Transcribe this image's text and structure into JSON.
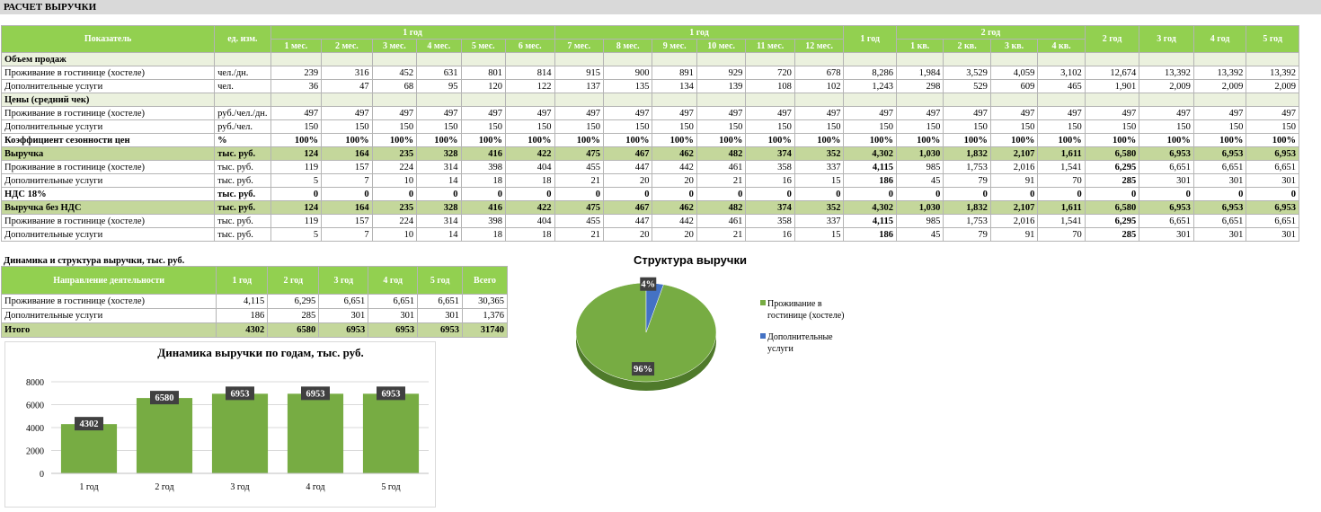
{
  "title": "РАСЧЕТ ВЫРУЧКИ",
  "main": {
    "head_indicator": "Показатель",
    "head_unit": "ед. изм.",
    "head_year1_a": "1 год",
    "head_year1_b": "1 год",
    "head_year1_total": "1 год",
    "head_year2": "2 год",
    "months_a": [
      "1 мес.",
      "2 мес.",
      "3 мес.",
      "4 мес.",
      "5 мес.",
      "6 мес."
    ],
    "months_b": [
      "7 мес.",
      "8 мес.",
      "9 мес.",
      "10 мес.",
      "11 мес.",
      "12 мес."
    ],
    "quarters": [
      "1 кв.",
      "2 кв.",
      "3 кв.",
      "4 кв."
    ],
    "years": [
      "2 год",
      "3 год",
      "4 год",
      "5 год"
    ],
    "rows": [
      {
        "label": "Объем продаж",
        "type": "sec",
        "unit": "",
        "values": [
          "",
          "",
          "",
          "",
          "",
          "",
          "",
          "",
          "",
          "",
          "",
          "",
          "",
          "",
          "",
          "",
          "",
          "",
          "",
          "",
          "",
          ""
        ]
      },
      {
        "label": "Проживание в гостинице (хостеле)",
        "type": "",
        "unit": "чел./дн.",
        "values": [
          "239",
          "316",
          "452",
          "631",
          "801",
          "814",
          "915",
          "900",
          "891",
          "929",
          "720",
          "678",
          "8,286",
          "1,984",
          "3,529",
          "4,059",
          "3,102",
          "12,674",
          "13,392",
          "13,392",
          "13,392"
        ]
      },
      {
        "label": "Дополнительные услуги",
        "type": "",
        "unit": "чел.",
        "values": [
          "36",
          "47",
          "68",
          "95",
          "120",
          "122",
          "137",
          "135",
          "134",
          "139",
          "108",
          "102",
          "1,243",
          "298",
          "529",
          "609",
          "465",
          "1,901",
          "2,009",
          "2,009",
          "2,009"
        ]
      },
      {
        "label": "Цены (средний чек)",
        "type": "sec",
        "unit": "",
        "values": [
          "",
          "",
          "",
          "",
          "",
          "",
          "",
          "",
          "",
          "",
          "",
          "",
          "",
          "",
          "",
          "",
          "",
          "",
          "",
          "",
          ""
        ]
      },
      {
        "label": "Проживание в гостинице (хостеле)",
        "type": "",
        "unit": "руб./чел./дн.",
        "values": [
          "497",
          "497",
          "497",
          "497",
          "497",
          "497",
          "497",
          "497",
          "497",
          "497",
          "497",
          "497",
          "497",
          "497",
          "497",
          "497",
          "497",
          "497",
          "497",
          "497",
          "497"
        ]
      },
      {
        "label": "Дополнительные услуги",
        "type": "",
        "unit": "руб./чел.",
        "values": [
          "150",
          "150",
          "150",
          "150",
          "150",
          "150",
          "150",
          "150",
          "150",
          "150",
          "150",
          "150",
          "150",
          "150",
          "150",
          "150",
          "150",
          "150",
          "150",
          "150",
          "150"
        ]
      },
      {
        "label": "Коэффициент сезонности цен",
        "type": "bold",
        "unit": "%",
        "values": [
          "100%",
          "100%",
          "100%",
          "100%",
          "100%",
          "100%",
          "100%",
          "100%",
          "100%",
          "100%",
          "100%",
          "100%",
          "100%",
          "100%",
          "100%",
          "100%",
          "100%",
          "100%",
          "100%",
          "100%",
          "100%"
        ]
      },
      {
        "label": "Выручка",
        "type": "tot",
        "unit": "тыс. руб.",
        "values": [
          "124",
          "164",
          "235",
          "328",
          "416",
          "422",
          "475",
          "467",
          "462",
          "482",
          "374",
          "352",
          "4,302",
          "1,030",
          "1,832",
          "2,107",
          "1,611",
          "6,580",
          "6,953",
          "6,953",
          "6,953"
        ]
      },
      {
        "label": "Проживание в гостинице (хостеле)",
        "type": "",
        "unit": "тыс. руб.",
        "values": [
          "119",
          "157",
          "224",
          "314",
          "398",
          "404",
          "455",
          "447",
          "442",
          "461",
          "358",
          "337",
          "4,115",
          "985",
          "1,753",
          "2,016",
          "1,541",
          "6,295",
          "6,651",
          "6,651",
          "6,651"
        ]
      },
      {
        "label": "Дополнительные услуги",
        "type": "",
        "unit": "тыс. руб.",
        "values": [
          "5",
          "7",
          "10",
          "14",
          "18",
          "18",
          "21",
          "20",
          "20",
          "21",
          "16",
          "15",
          "186",
          "45",
          "79",
          "91",
          "70",
          "285",
          "301",
          "301",
          "301"
        ]
      },
      {
        "label": "НДС 18%",
        "type": "bold",
        "unit": "тыс. руб.",
        "values": [
          "0",
          "0",
          "0",
          "0",
          "0",
          "0",
          "0",
          "0",
          "0",
          "0",
          "0",
          "0",
          "0",
          "0",
          "0",
          "0",
          "0",
          "0",
          "0",
          "0",
          "0"
        ]
      },
      {
        "label": "Выручка без НДС",
        "type": "tot",
        "unit": "тыс. руб.",
        "values": [
          "124",
          "164",
          "235",
          "328",
          "416",
          "422",
          "475",
          "467",
          "462",
          "482",
          "374",
          "352",
          "4,302",
          "1,030",
          "1,832",
          "2,107",
          "1,611",
          "6,580",
          "6,953",
          "6,953",
          "6,953"
        ]
      },
      {
        "label": "Проживание в гостинице (хостеле)",
        "type": "",
        "unit": "тыс. руб.",
        "values": [
          "119",
          "157",
          "224",
          "314",
          "398",
          "404",
          "455",
          "447",
          "442",
          "461",
          "358",
          "337",
          "4,115",
          "985",
          "1,753",
          "2,016",
          "1,541",
          "6,295",
          "6,651",
          "6,651",
          "6,651"
        ]
      },
      {
        "label": "Дополнительные услуги",
        "type": "",
        "unit": "тыс. руб.",
        "values": [
          "5",
          "7",
          "10",
          "14",
          "18",
          "18",
          "21",
          "20",
          "20",
          "21",
          "16",
          "15",
          "186",
          "45",
          "79",
          "91",
          "70",
          "285",
          "301",
          "301",
          "301"
        ]
      }
    ]
  },
  "summary": {
    "title": "Динамика и структура выручки, тыс. руб.",
    "head": [
      "Направление деятельности",
      "1 год",
      "2 год",
      "3 год",
      "4 год",
      "5 год",
      "Всего"
    ],
    "rows": [
      {
        "type": "",
        "cells": [
          "Проживание в гостинице (хостеле)",
          "4,115",
          "6,295",
          "6,651",
          "6,651",
          "6,651",
          "30,365"
        ]
      },
      {
        "type": "",
        "cells": [
          "Дополнительные услуги",
          "186",
          "285",
          "301",
          "301",
          "301",
          "1,376"
        ]
      },
      {
        "type": "tot",
        "cells": [
          "Итого",
          "4302",
          "6580",
          "6953",
          "6953",
          "6953",
          "31740"
        ]
      }
    ]
  },
  "chart_data": [
    {
      "type": "bar",
      "title": "Динамика выручки по годам, тыс. руб.",
      "categories": [
        "1 год",
        "2 год",
        "3 год",
        "4 год",
        "5 год"
      ],
      "values": [
        4302,
        6580,
        6953,
        6953,
        6953
      ],
      "ylim": [
        0,
        8000
      ],
      "yticks": [
        0,
        2000,
        4000,
        6000,
        8000
      ],
      "grid": true,
      "color": "#77ac43"
    },
    {
      "type": "pie",
      "title": "Структура выручки",
      "labels": [
        "Проживание в гостинице (хостеле)",
        "Дополнительные услуги"
      ],
      "legend_lines": [
        [
          "Проживание в",
          "гостинице (хостеле)"
        ],
        [
          "Дополнительные",
          "услуги"
        ]
      ],
      "values": [
        96,
        4
      ],
      "value_labels": [
        "96%",
        "4%"
      ],
      "colors": [
        "#77ac43",
        "#4472c4"
      ],
      "legend": "right"
    }
  ]
}
